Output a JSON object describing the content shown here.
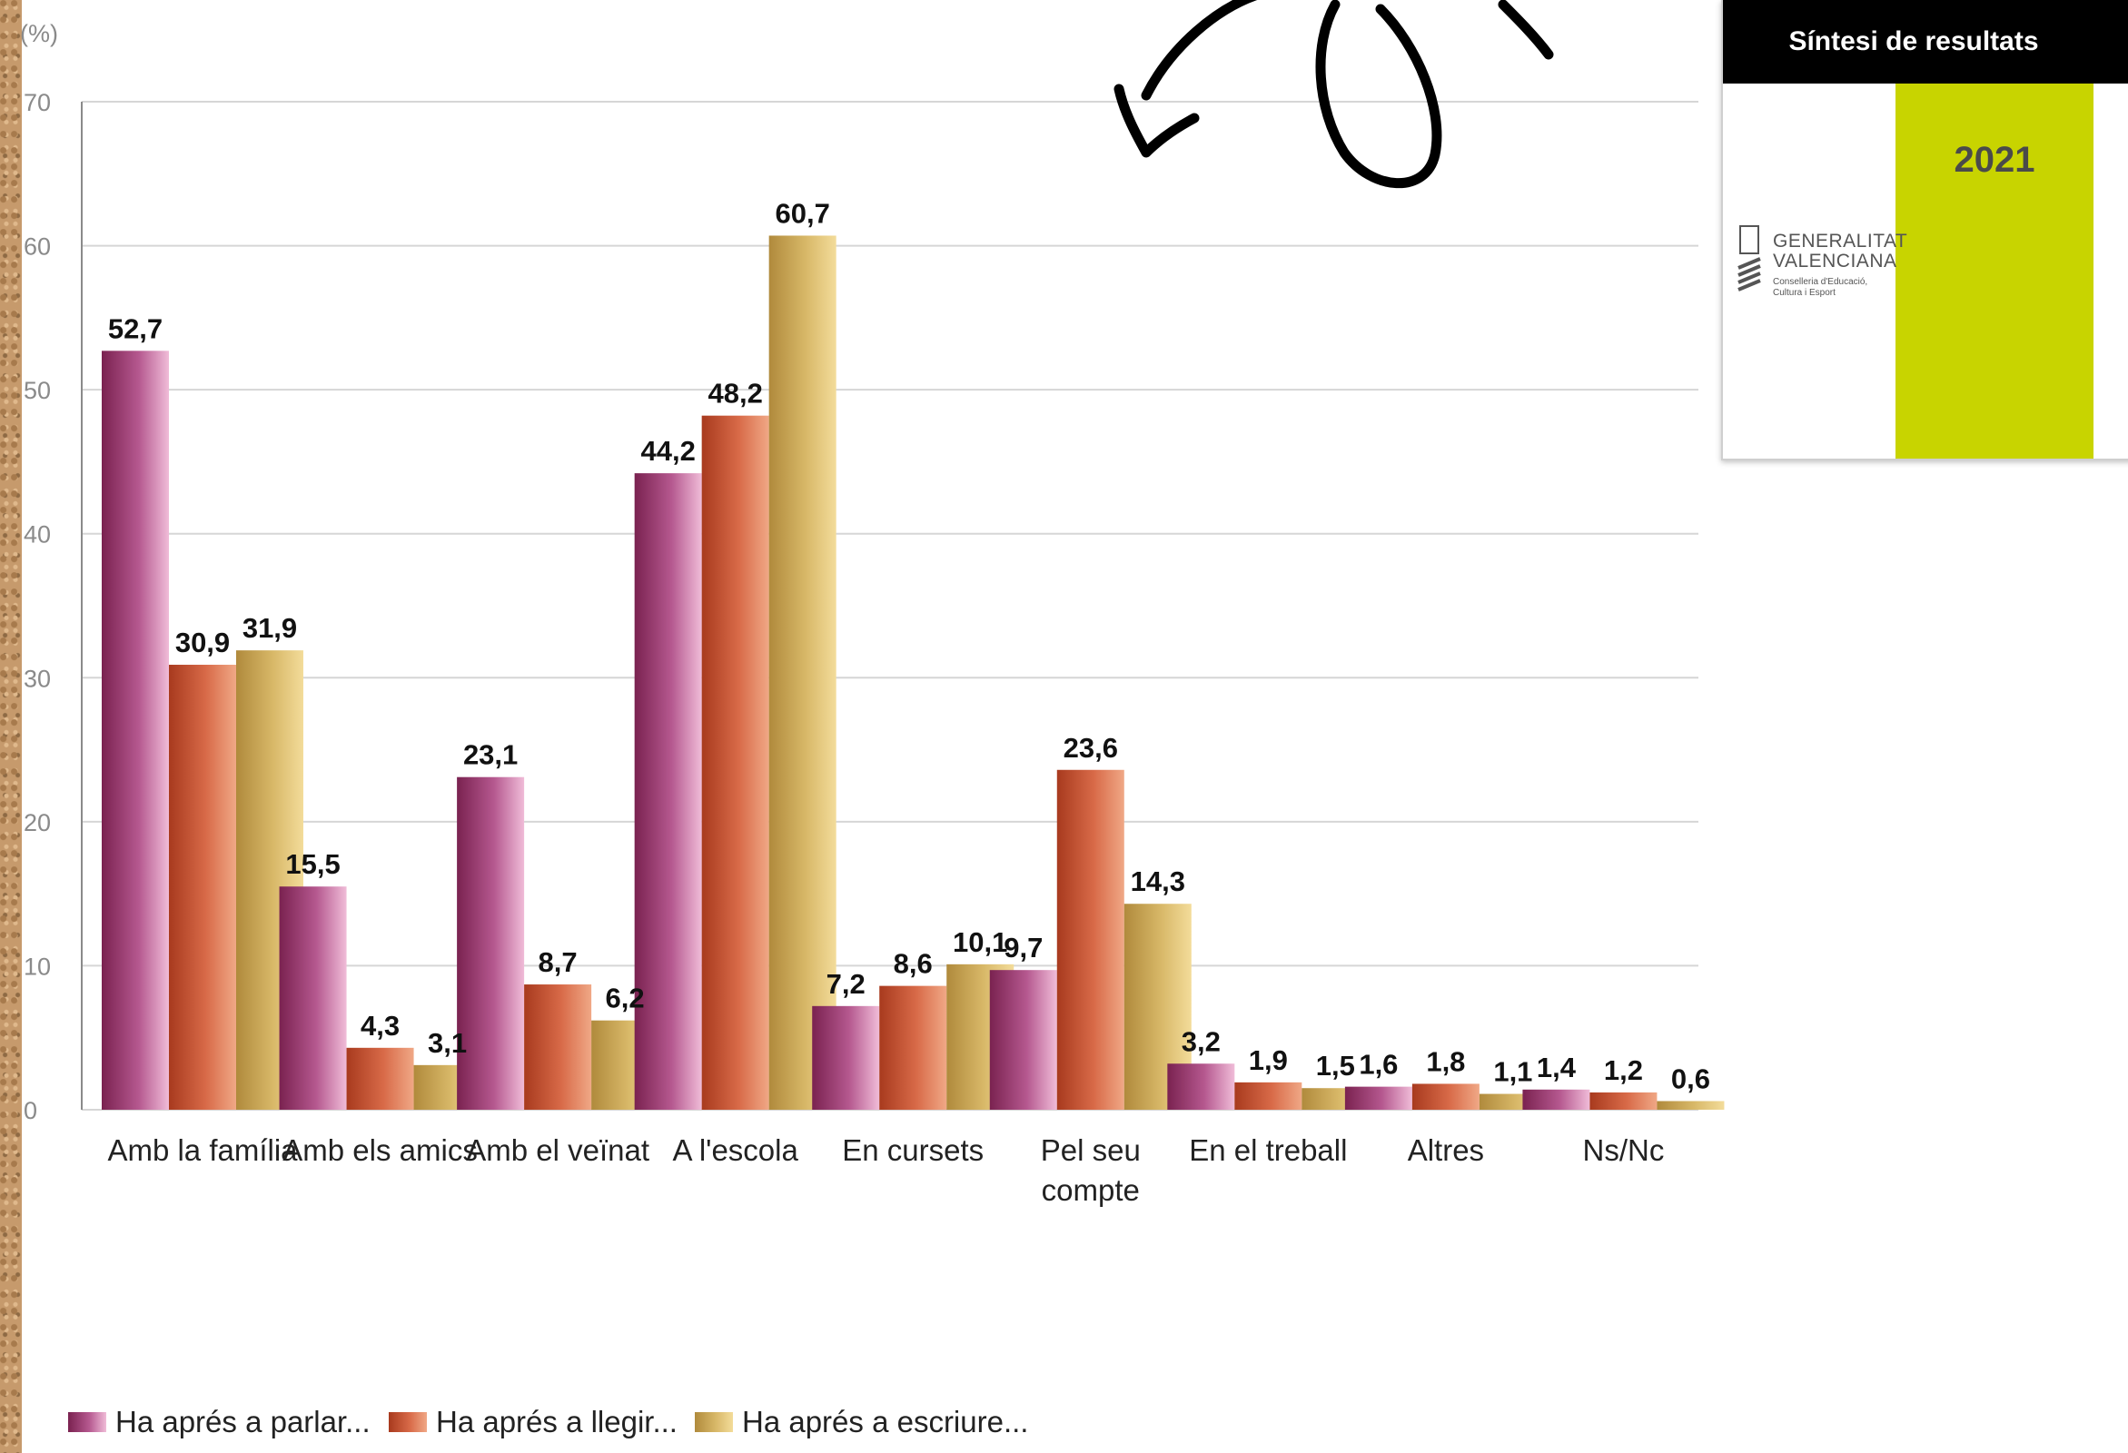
{
  "chart_data": {
    "type": "bar",
    "y_unit_label": "(%)",
    "ylim": [
      0,
      70
    ],
    "yticks": [
      0,
      10,
      20,
      30,
      40,
      50,
      60,
      70
    ],
    "grid": true,
    "legend_position": "bottom-left",
    "categories": [
      [
        "Amb la família"
      ],
      [
        "Amb els amics"
      ],
      [
        "Amb el veïnat"
      ],
      [
        "A l'escola"
      ],
      [
        "En cursets"
      ],
      [
        "Pel seu",
        "compte"
      ],
      [
        "En el treball"
      ],
      [
        "Altres"
      ],
      [
        "Ns/Nc"
      ]
    ],
    "series": [
      {
        "name": "Ha aprés a parlar...",
        "values": [
          52.7,
          15.5,
          23.1,
          44.2,
          7.2,
          9.7,
          3.2,
          1.6,
          1.4
        ]
      },
      {
        "name": "Ha aprés a llegir...",
        "values": [
          30.9,
          4.3,
          8.7,
          48.2,
          8.6,
          23.6,
          1.9,
          1.8,
          1.2
        ]
      },
      {
        "name": "Ha aprés a escriure...",
        "values": [
          31.9,
          3.1,
          6.2,
          60.7,
          10.1,
          14.3,
          1.5,
          1.1,
          0.6
        ]
      }
    ],
    "colors": {
      "series": [
        [
          "#7a2250",
          "#b5588f",
          "#f0bcd8"
        ],
        [
          "#a83a1e",
          "#d86a48",
          "#f0a886"
        ],
        [
          "#b08a3c",
          "#d8b868",
          "#f3dc9a"
        ]
      ],
      "grid": "#d6d6d6",
      "axis": "#8a8a8a"
    }
  },
  "cover": {
    "header": "Síntesi de resultats",
    "year": "2021",
    "logo_name_line1": "GENERALITAT",
    "logo_name_line2": "VALENCIANA",
    "logo_sub_line1": "Conselleria d'Educació,",
    "logo_sub_line2": "Cultura i Esport",
    "colors": {
      "header": "#000000",
      "band": "#c8d400"
    }
  },
  "annotation": {
    "description_icon": "hand-drawn-arrow-icon",
    "stroke_color": "#000000"
  }
}
